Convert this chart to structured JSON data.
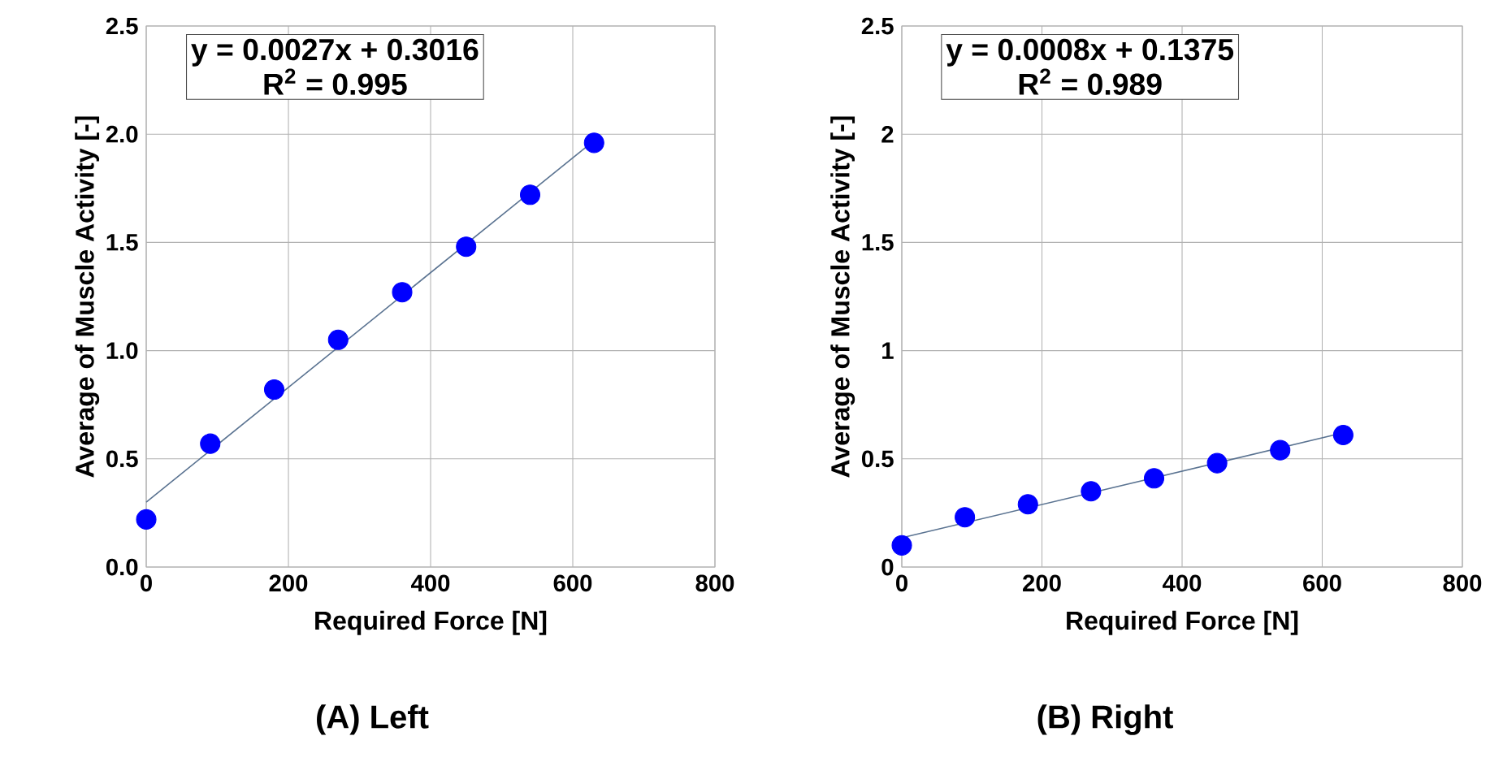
{
  "chart_data": [
    {
      "type": "scatter",
      "title": "(A) Left",
      "xlabel": "Required Force [N]",
      "ylabel": "Average of Muscle Activity [-]",
      "xlim": [
        0,
        800
      ],
      "xticks": [
        0,
        200,
        400,
        600,
        800
      ],
      "ylim": [
        0,
        2.5
      ],
      "yticks": [
        {
          "value": 0,
          "label": "0.0"
        },
        0.5,
        {
          "value": 1,
          "label": "1.0"
        },
        1.5,
        {
          "value": 2,
          "label": "2.0"
        },
        2.5
      ],
      "grid": true,
      "annotations": [
        "y = 0.0027x + 0.3016",
        "R$^{2}$ = 0.995"
      ],
      "series": [
        {
          "marker": "circle",
          "color": "#0000ff",
          "x": [
            0,
            90,
            180,
            270,
            360,
            450,
            540,
            630
          ],
          "values": [
            0.22,
            0.57,
            0.82,
            1.05,
            1.27,
            1.48,
            1.72,
            1.96
          ]
        },
        {
          "type": "line",
          "marker": "none",
          "color": "#5a7391",
          "x": [
            0,
            630
          ],
          "values": [
            0.3,
            1.97
          ]
        }
      ]
    },
    {
      "type": "scatter",
      "title": "(B) Right",
      "xlabel": "Required Force [N]",
      "ylabel": "Average of Muscle Activity [-]",
      "xlim": [
        0,
        800
      ],
      "xticks": [
        0,
        200,
        400,
        600,
        800
      ],
      "ylim": [
        0,
        2.5
      ],
      "yticks": [
        0,
        0.5,
        1,
        1.5,
        2,
        2.5
      ],
      "grid": true,
      "annotations": [
        "y = 0.0008x + 0.1375",
        "R$^{2}$ = 0.989"
      ],
      "series": [
        {
          "marker": "circle",
          "color": "#0000ff",
          "x": [
            0,
            90,
            180,
            270,
            360,
            450,
            540,
            630
          ],
          "values": [
            0.1,
            0.23,
            0.29,
            0.35,
            0.41,
            0.48,
            0.54,
            0.61
          ]
        },
        {
          "type": "line",
          "marker": "none",
          "color": "#5a7391",
          "x": [
            0,
            630
          ],
          "values": [
            0.135,
            0.62
          ]
        }
      ]
    }
  ]
}
